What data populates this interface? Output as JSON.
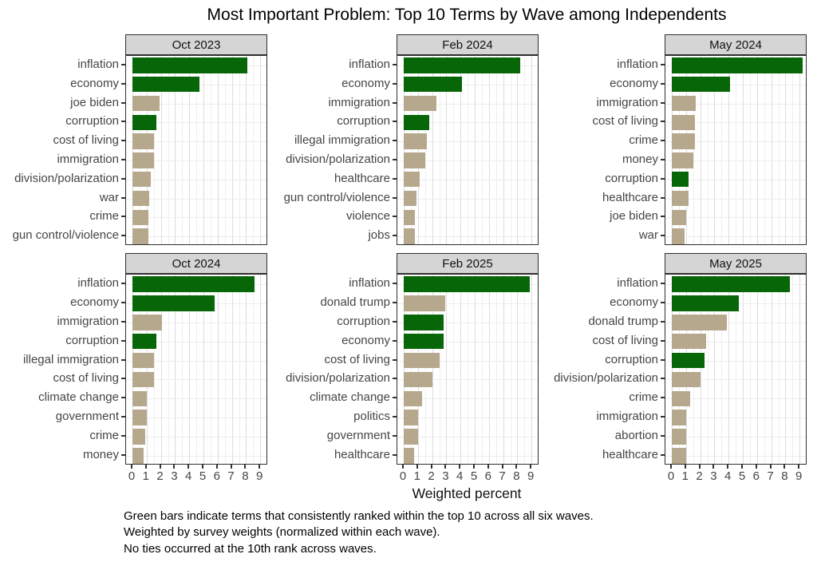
{
  "title": "Most Important Problem: Top 10 Terms by Wave among Independents",
  "captions": [
    "Green bars indicate terms that consistently ranked within the top 10 across all six waves.",
    "Weighted by survey weights (normalized within each wave).",
    "No ties occurred at the 10th rank across waves."
  ],
  "colors": {
    "consistent_bar": "#076607",
    "other_bar": "#b6a88d",
    "strip_background": "#d5d5d5",
    "panel_border": "#2f2f2f",
    "grid_major": "#dcdcdc",
    "grid_minor": "#efefef",
    "axis_text": "#454545"
  },
  "chart_data": {
    "type": "bar",
    "orientation": "horizontal",
    "title": "Most Important Problem: Top 10 Terms by Wave among Independents",
    "xlabel": "Weighted percent",
    "xlim": [
      0,
      9
    ],
    "x_ticks": [
      0,
      1,
      2,
      3,
      4,
      5,
      6,
      7,
      8,
      9
    ],
    "grid": true,
    "facets": [
      {
        "wave": "Oct 2023",
        "items": [
          {
            "term": "inflation",
            "value": 8.1,
            "consistent": true
          },
          {
            "term": "economy",
            "value": 4.7,
            "consistent": true
          },
          {
            "term": "joe biden",
            "value": 1.9,
            "consistent": false
          },
          {
            "term": "corruption",
            "value": 1.7,
            "consistent": true
          },
          {
            "term": "cost of living",
            "value": 1.5,
            "consistent": false
          },
          {
            "term": "immigration",
            "value": 1.5,
            "consistent": false
          },
          {
            "term": "division/polarization",
            "value": 1.3,
            "consistent": false
          },
          {
            "term": "war",
            "value": 1.2,
            "consistent": false
          },
          {
            "term": "crime",
            "value": 1.1,
            "consistent": false
          },
          {
            "term": "gun control/violence",
            "value": 1.1,
            "consistent": false
          }
        ]
      },
      {
        "wave": "Feb 2024",
        "items": [
          {
            "term": "inflation",
            "value": 8.2,
            "consistent": true
          },
          {
            "term": "economy",
            "value": 4.1,
            "consistent": true
          },
          {
            "term": "immigration",
            "value": 2.3,
            "consistent": false
          },
          {
            "term": "corruption",
            "value": 1.8,
            "consistent": true
          },
          {
            "term": "illegal immigration",
            "value": 1.6,
            "consistent": false
          },
          {
            "term": "division/polarization",
            "value": 1.5,
            "consistent": false
          },
          {
            "term": "healthcare",
            "value": 1.1,
            "consistent": false
          },
          {
            "term": "gun control/violence",
            "value": 0.9,
            "consistent": false
          },
          {
            "term": "violence",
            "value": 0.8,
            "consistent": false
          },
          {
            "term": "jobs",
            "value": 0.8,
            "consistent": false
          }
        ]
      },
      {
        "wave": "May 2024",
        "items": [
          {
            "term": "inflation",
            "value": 9.2,
            "consistent": true
          },
          {
            "term": "economy",
            "value": 4.1,
            "consistent": true
          },
          {
            "term": "immigration",
            "value": 1.7,
            "consistent": false
          },
          {
            "term": "cost of living",
            "value": 1.6,
            "consistent": false
          },
          {
            "term": "crime",
            "value": 1.6,
            "consistent": false
          },
          {
            "term": "money",
            "value": 1.5,
            "consistent": false
          },
          {
            "term": "corruption",
            "value": 1.2,
            "consistent": true
          },
          {
            "term": "healthcare",
            "value": 1.2,
            "consistent": false
          },
          {
            "term": "joe biden",
            "value": 1.0,
            "consistent": false
          },
          {
            "term": "war",
            "value": 0.9,
            "consistent": false
          }
        ]
      },
      {
        "wave": "Oct 2024",
        "items": [
          {
            "term": "inflation",
            "value": 8.6,
            "consistent": true
          },
          {
            "term": "economy",
            "value": 5.8,
            "consistent": true
          },
          {
            "term": "immigration",
            "value": 2.1,
            "consistent": false
          },
          {
            "term": "corruption",
            "value": 1.7,
            "consistent": true
          },
          {
            "term": "illegal immigration",
            "value": 1.5,
            "consistent": false
          },
          {
            "term": "cost of living",
            "value": 1.5,
            "consistent": false
          },
          {
            "term": "climate change",
            "value": 1.0,
            "consistent": false
          },
          {
            "term": "government",
            "value": 1.0,
            "consistent": false
          },
          {
            "term": "crime",
            "value": 0.9,
            "consistent": false
          },
          {
            "term": "money",
            "value": 0.8,
            "consistent": false
          }
        ]
      },
      {
        "wave": "Feb 2025",
        "items": [
          {
            "term": "inflation",
            "value": 8.9,
            "consistent": true
          },
          {
            "term": "donald trump",
            "value": 2.9,
            "consistent": false
          },
          {
            "term": "corruption",
            "value": 2.8,
            "consistent": true
          },
          {
            "term": "economy",
            "value": 2.8,
            "consistent": true
          },
          {
            "term": "cost of living",
            "value": 2.5,
            "consistent": false
          },
          {
            "term": "division/polarization",
            "value": 2.0,
            "consistent": false
          },
          {
            "term": "climate change",
            "value": 1.3,
            "consistent": false
          },
          {
            "term": "politics",
            "value": 1.0,
            "consistent": false
          },
          {
            "term": "government",
            "value": 1.0,
            "consistent": false
          },
          {
            "term": "healthcare",
            "value": 0.7,
            "consistent": false
          }
        ]
      },
      {
        "wave": "May 2025",
        "items": [
          {
            "term": "inflation",
            "value": 8.3,
            "consistent": true
          },
          {
            "term": "economy",
            "value": 4.7,
            "consistent": true
          },
          {
            "term": "donald trump",
            "value": 3.9,
            "consistent": false
          },
          {
            "term": "cost of living",
            "value": 2.4,
            "consistent": false
          },
          {
            "term": "corruption",
            "value": 2.3,
            "consistent": true
          },
          {
            "term": "division/polarization",
            "value": 2.0,
            "consistent": false
          },
          {
            "term": "crime",
            "value": 1.3,
            "consistent": false
          },
          {
            "term": "immigration",
            "value": 1.0,
            "consistent": false
          },
          {
            "term": "abortion",
            "value": 1.0,
            "consistent": false
          },
          {
            "term": "healthcare",
            "value": 1.0,
            "consistent": false
          }
        ]
      }
    ]
  }
}
